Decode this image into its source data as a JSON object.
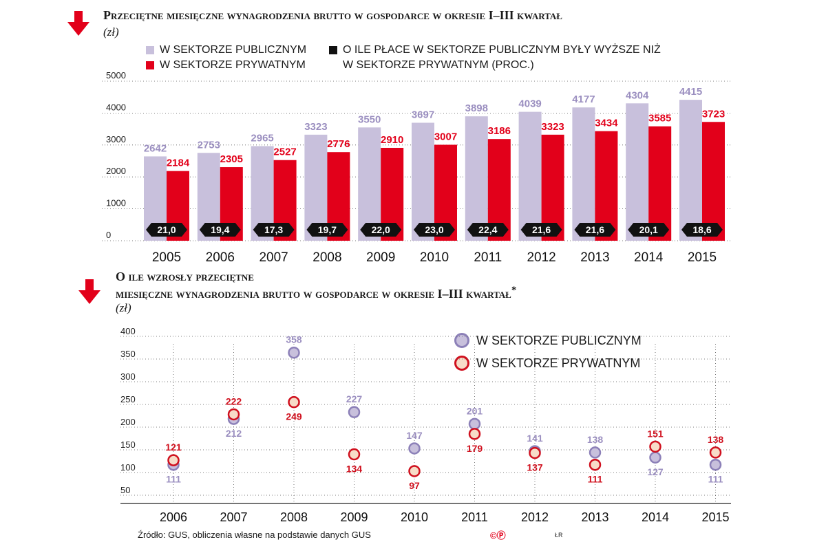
{
  "chart_data": [
    {
      "type": "bar",
      "title": "Przeciętne miesięczne  wynagrodzenia brutto w gospodarce w okresie I–III kwartał",
      "unit": "(zł)",
      "categories": [
        "2005",
        "2006",
        "2007",
        "2008",
        "2009",
        "2010",
        "2011",
        "2012",
        "2013",
        "2014",
        "2015"
      ],
      "series": [
        {
          "name": "W SEKTORZE PUBLICZNYM",
          "color": "#c8c0dc",
          "label_color": "#9b8fc0",
          "values": [
            2642,
            2753,
            2965,
            3323,
            3550,
            3697,
            3898,
            4039,
            4177,
            4304,
            4415
          ]
        },
        {
          "name": "W SEKTORZE PRYWATNYM",
          "color": "#e2001a",
          "label_color": "#e2001a",
          "values": [
            2184,
            2305,
            2527,
            2776,
            2910,
            3007,
            3186,
            3323,
            3434,
            3585,
            3723
          ]
        }
      ],
      "diff_legend": [
        "O ILE PŁACE W SEKTORZE PUBLICZNYM BYŁY WYŻSZE NIŻ",
        "W SEKTORZE PRYWATNYM (PROC.)"
      ],
      "diff_values": [
        "21,0",
        "19,4",
        "17,3",
        "19,7",
        "22,0",
        "23,0",
        "22,4",
        "21,6",
        "21,6",
        "20,1",
        "18,6"
      ],
      "yticks": [
        "5000",
        "4000",
        "3000",
        "2000",
        "1000",
        "0"
      ],
      "ylim": [
        0,
        5000
      ]
    },
    {
      "type": "scatter",
      "title_line1": "O ile wzrosły przeciętne",
      "title_line2": "miesięczne wynagrodzenia brutto w gospodarce w okresie I–III kwartał",
      "title_mark": "*",
      "unit": "(zł)",
      "categories": [
        "2006",
        "2007",
        "2008",
        "2009",
        "2010",
        "2011",
        "2012",
        "2013",
        "2014",
        "2015"
      ],
      "series": [
        {
          "name": "W SEKTORZE PUBLICZNYM",
          "color": "#c8c0dc",
          "stroke": "#8c80b8",
          "label_color": "#9b8fc0",
          "values": [
            111,
            212,
            358,
            227,
            147,
            201,
            141,
            138,
            127,
            111
          ],
          "labels": [
            "111",
            "212",
            "358",
            "227",
            "147",
            "201",
            "141",
            "138",
            "127",
            "111"
          ]
        },
        {
          "name": "W SEKTORZE PRYWATNYM",
          "color": "#f7dcc8",
          "stroke": "#d0101e",
          "label_color": "#d0101e",
          "values": [
            121,
            222,
            249,
            134,
            97,
            179,
            137,
            111,
            151,
            138
          ],
          "labels": [
            "121",
            "222",
            "249",
            "134",
            "97",
            "179",
            "137",
            "111",
            "151",
            "138"
          ]
        }
      ],
      "yticks": [
        "400",
        "350",
        "300",
        "250",
        "200",
        "150",
        "100",
        "50"
      ],
      "ylim": [
        50,
        400
      ]
    }
  ],
  "footer": {
    "source_a": "Źródło: GUS, obliczenia własne",
    "source_b": "na podstawie danych GUS",
    "copyright": "©Ⓟ",
    "author": "ŁR"
  }
}
